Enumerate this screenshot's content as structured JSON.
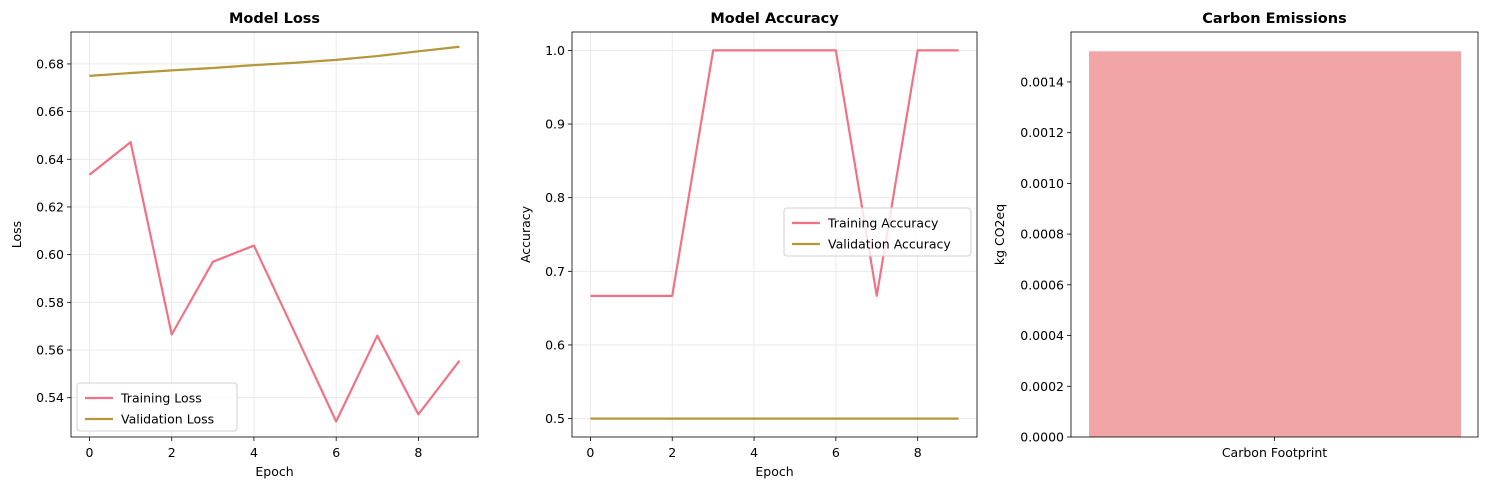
{
  "colors": {
    "training": "#f07286",
    "validation": "#b5963a",
    "bar": "#f2a5a7",
    "grid": "#e6e6e6",
    "axis": "#000000"
  },
  "chart_data": [
    {
      "type": "line",
      "title": "Model Loss",
      "xlabel": "Epoch",
      "ylabel": "Loss",
      "x": [
        0,
        1,
        2,
        3,
        4,
        5,
        6,
        7,
        8,
        9
      ],
      "xlim": [
        -0.45,
        9.45
      ],
      "ylim": [
        0.5235,
        0.6934
      ],
      "xticks": [
        0,
        2,
        4,
        6,
        8
      ],
      "yticks": [
        0.54,
        0.56,
        0.58,
        0.6,
        0.62,
        0.64,
        0.66,
        0.68
      ],
      "ytick_labels": [
        "0.54",
        "0.56",
        "0.58",
        "0.60",
        "0.62",
        "0.64",
        "0.66",
        "0.68"
      ],
      "grid": true,
      "legend_position": "lower-left",
      "series": [
        {
          "name": "Training Loss",
          "color_key": "training",
          "values": [
            0.6335,
            0.6472,
            0.5665,
            0.597,
            0.6038,
            0.567,
            0.53,
            0.566,
            0.533,
            0.5555
          ]
        },
        {
          "name": "Validation Loss",
          "color_key": "validation",
          "values": [
            0.675,
            0.6762,
            0.6773,
            0.6783,
            0.6795,
            0.6805,
            0.6817,
            0.6833,
            0.6853,
            0.6872
          ]
        }
      ]
    },
    {
      "type": "line",
      "title": "Model Accuracy",
      "xlabel": "Epoch",
      "ylabel": "Accuracy",
      "x": [
        0,
        1,
        2,
        3,
        4,
        5,
        6,
        7,
        8,
        9
      ],
      "xlim": [
        -0.45,
        9.45
      ],
      "ylim": [
        0.475,
        1.025
      ],
      "xticks": [
        0,
        2,
        4,
        6,
        8
      ],
      "yticks": [
        0.5,
        0.6,
        0.7,
        0.8,
        0.9,
        1.0
      ],
      "ytick_labels": [
        "0.5",
        "0.6",
        "0.7",
        "0.8",
        "0.9",
        "1.0"
      ],
      "grid": true,
      "legend_position": "center-right",
      "series": [
        {
          "name": "Training Accuracy",
          "color_key": "training",
          "values": [
            0.6667,
            0.6667,
            0.6667,
            1.0,
            1.0,
            1.0,
            1.0,
            0.6667,
            1.0,
            1.0
          ]
        },
        {
          "name": "Validation Accuracy",
          "color_key": "validation",
          "values": [
            0.5,
            0.5,
            0.5,
            0.5,
            0.5,
            0.5,
            0.5,
            0.5,
            0.5,
            0.5
          ]
        }
      ]
    },
    {
      "type": "bar",
      "title": "Carbon Emissions",
      "xlabel": "",
      "ylabel": "kg CO2eq",
      "categories": [
        "Carbon Footprint"
      ],
      "values": [
        0.001521
      ],
      "ylim": [
        0,
        0.001597
      ],
      "yticks": [
        0,
        0.0002,
        0.0004,
        0.0006,
        0.0008,
        0.001,
        0.0012,
        0.0014
      ],
      "ytick_labels": [
        "0.0000",
        "0.0002",
        "0.0004",
        "0.0006",
        "0.0008",
        "0.0010",
        "0.0012",
        "0.0014"
      ],
      "grid": false,
      "color_key": "bar"
    }
  ]
}
